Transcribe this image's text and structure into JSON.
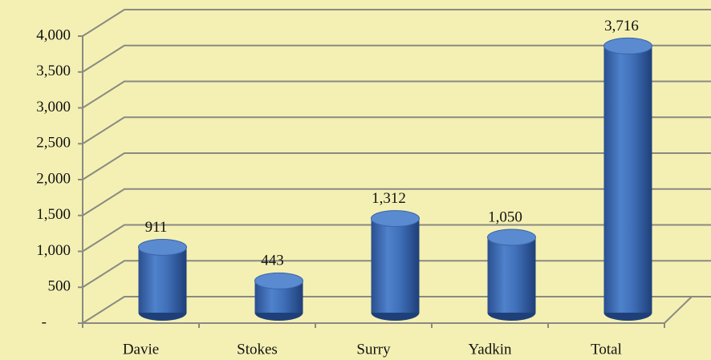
{
  "chart_data": {
    "type": "bar",
    "categories": [
      "Davie",
      "Stokes",
      "Surry",
      "Yadkin",
      "Total"
    ],
    "values": [
      911,
      443,
      1312,
      1050,
      3716
    ],
    "value_labels": [
      "911",
      "443",
      "1,312",
      "1,050",
      "3,716"
    ],
    "color": "#3f6fb8",
    "ylim": [
      0,
      4000
    ],
    "yticks": [
      {
        "value": 0,
        "label": "-"
      },
      500,
      {
        "value": 1000,
        "label": "1,000"
      },
      {
        "value": 1500,
        "label": "1,500"
      },
      {
        "value": 2000,
        "label": "2,000"
      },
      {
        "value": 2500,
        "label": "2,500"
      },
      {
        "value": 3000,
        "label": "3,000"
      },
      {
        "value": 3500,
        "label": "3,500"
      },
      {
        "value": 4000,
        "label": "4,000"
      }
    ],
    "grid": true
  }
}
